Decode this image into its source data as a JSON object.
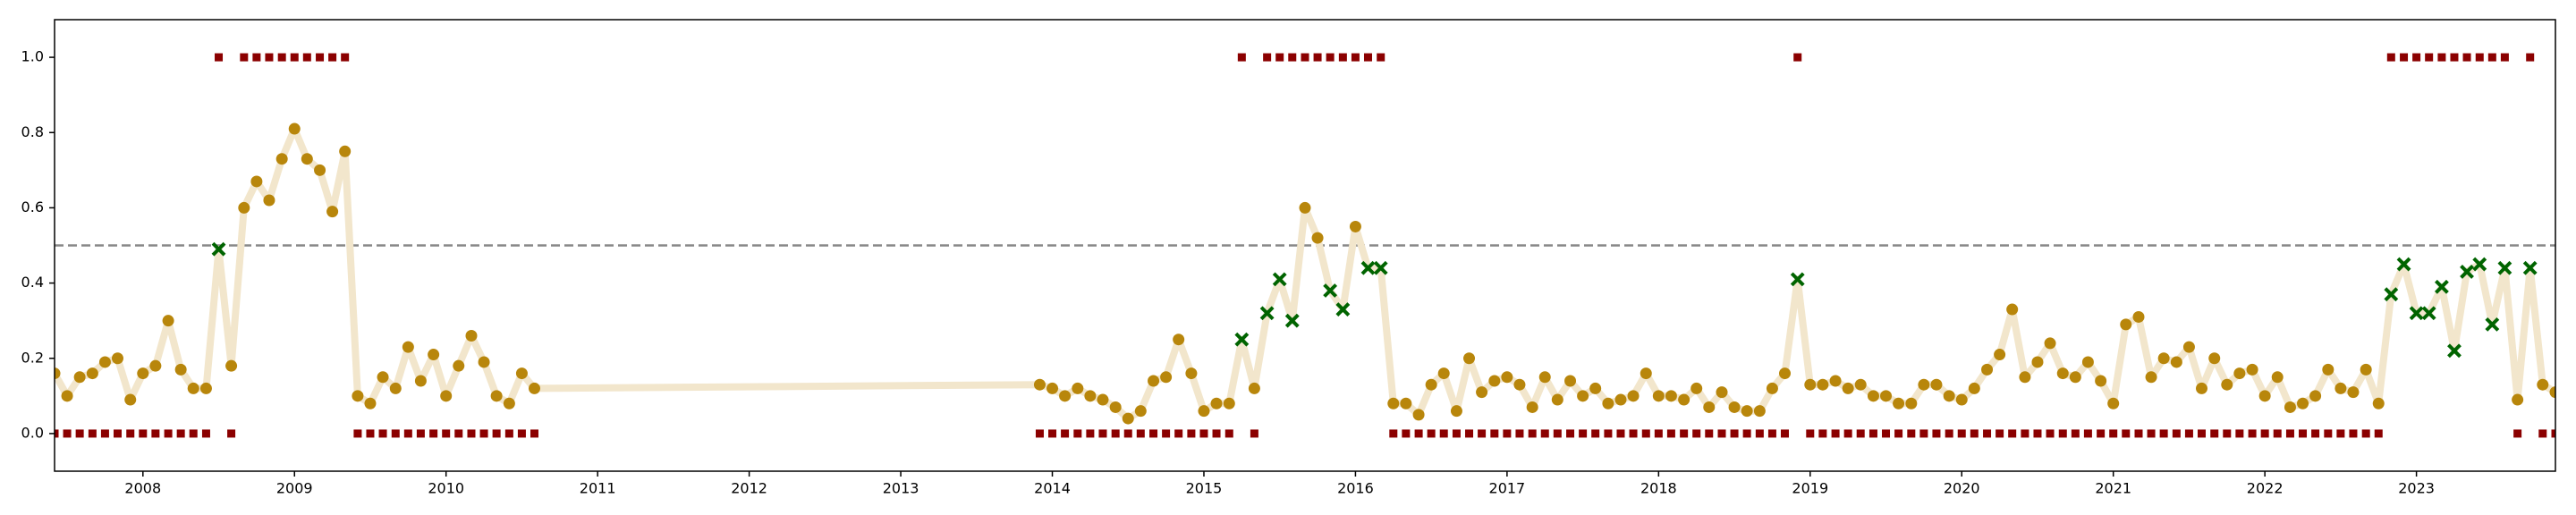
{
  "chart_data": {
    "type": "line",
    "x": [
      2007.417,
      2007.5,
      2007.583,
      2007.667,
      2007.75,
      2007.833,
      2007.917,
      2008,
      2008.083,
      2008.167,
      2008.25,
      2008.333,
      2008.417,
      2008.5,
      2008.583,
      2008.667,
      2008.75,
      2008.833,
      2008.917,
      2009,
      2009.083,
      2009.167,
      2009.25,
      2009.333,
      2009.417,
      2009.5,
      2009.583,
      2009.667,
      2009.75,
      2009.833,
      2009.917,
      2010,
      2010.083,
      2010.167,
      2010.25,
      2010.333,
      2010.417,
      2010.5,
      2010.583,
      2013.917,
      2014,
      2014.083,
      2014.167,
      2014.25,
      2014.333,
      2014.417,
      2014.5,
      2014.583,
      2014.667,
      2014.75,
      2014.833,
      2014.917,
      2015,
      2015.083,
      2015.167,
      2015.25,
      2015.333,
      2015.417,
      2015.5,
      2015.583,
      2015.667,
      2015.75,
      2015.833,
      2015.917,
      2016,
      2016.083,
      2016.167,
      2016.25,
      2016.333,
      2016.417,
      2016.5,
      2016.583,
      2016.667,
      2016.75,
      2016.833,
      2016.917,
      2017,
      2017.083,
      2017.167,
      2017.25,
      2017.333,
      2017.417,
      2017.5,
      2017.583,
      2017.667,
      2017.75,
      2017.833,
      2017.917,
      2018,
      2018.083,
      2018.167,
      2018.25,
      2018.333,
      2018.417,
      2018.5,
      2018.583,
      2018.667,
      2018.75,
      2018.833,
      2018.917,
      2019,
      2019.083,
      2019.167,
      2019.25,
      2019.333,
      2019.417,
      2019.5,
      2019.583,
      2019.667,
      2019.75,
      2019.833,
      2019.917,
      2020,
      2020.083,
      2020.167,
      2020.25,
      2020.333,
      2020.417,
      2020.5,
      2020.583,
      2020.667,
      2020.75,
      2020.833,
      2020.917,
      2021,
      2021.083,
      2021.167,
      2021.25,
      2021.333,
      2021.417,
      2021.5,
      2021.583,
      2021.667,
      2021.75,
      2021.833,
      2021.917,
      2022,
      2022.083,
      2022.167,
      2022.25,
      2022.333,
      2022.417,
      2022.5,
      2022.583,
      2022.667,
      2022.75,
      2022.833,
      2022.917,
      2023,
      2023.083,
      2023.167,
      2023.25,
      2023.333,
      2023.417,
      2023.5,
      2023.583,
      2023.667,
      2023.75,
      2023.833,
      2023.917
    ],
    "series": [
      {
        "color": "#f2e6cc",
        "marker_color": "#b8860b",
        "miss_color": "#006400",
        "values": [
          0.16,
          0.1,
          0.15,
          0.16,
          0.19,
          0.2,
          0.09,
          0.16,
          0.18,
          0.3,
          0.17,
          0.12,
          0.12,
          0.49,
          0.18,
          0.6,
          0.67,
          0.62,
          0.73,
          0.81,
          0.73,
          0.7,
          0.59,
          0.75,
          0.1,
          0.08,
          0.15,
          0.12,
          0.23,
          0.14,
          0.21,
          0.1,
          0.18,
          0.26,
          0.19,
          0.1,
          0.08,
          0.16,
          0.12,
          0.13,
          0.12,
          0.1,
          0.12,
          0.1,
          0.09,
          0.07,
          0.04,
          0.06,
          0.14,
          0.15,
          0.25,
          0.16,
          0.06,
          0.08,
          0.08,
          0.25,
          0.12,
          0.32,
          0.41,
          0.3,
          0.6,
          0.52,
          0.38,
          0.33,
          0.55,
          0.44,
          0.44,
          0.08,
          0.08,
          0.05,
          0.13,
          0.16,
          0.06,
          0.2,
          0.11,
          0.14,
          0.15,
          0.13,
          0.07,
          0.15,
          0.09,
          0.14,
          0.1,
          0.12,
          0.08,
          0.09,
          0.1,
          0.16,
          0.1,
          0.1,
          0.09,
          0.12,
          0.07,
          0.11,
          0.07,
          0.06,
          0.06,
          0.12,
          0.16,
          0.41,
          0.13,
          0.13,
          0.14,
          0.12,
          0.13,
          0.1,
          0.1,
          0.08,
          0.08,
          0.13,
          0.13,
          0.1,
          0.09,
          0.12,
          0.17,
          0.21,
          0.33,
          0.15,
          0.19,
          0.24,
          0.16,
          0.15,
          0.19,
          0.14,
          0.08,
          0.29,
          0.31,
          0.15,
          0.2,
          0.19,
          0.23,
          0.12,
          0.2,
          0.13,
          0.16,
          0.17,
          0.1,
          0.15,
          0.07,
          0.08,
          0.1,
          0.17,
          0.12,
          0.11,
          0.17,
          0.08,
          0.37,
          0.45,
          0.32,
          0.32,
          0.39,
          0.22,
          0.43,
          0.45,
          0.29,
          0.44,
          0.09,
          0.44,
          0.13,
          0.11
        ]
      },
      {
        "color": "#8b0000",
        "marker": "square",
        "values": [
          0,
          0,
          0,
          0,
          0,
          0,
          0,
          0,
          0,
          0,
          0,
          0,
          0,
          1,
          0,
          1,
          1,
          1,
          1,
          1,
          1,
          1,
          1,
          1,
          0,
          0,
          0,
          0,
          0,
          0,
          0,
          0,
          0,
          0,
          0,
          0,
          0,
          0,
          0,
          0,
          0,
          0,
          0,
          0,
          0,
          0,
          0,
          0,
          0,
          0,
          0,
          0,
          0,
          0,
          0,
          1,
          0,
          1,
          1,
          1,
          1,
          1,
          1,
          1,
          1,
          1,
          1,
          0,
          0,
          0,
          0,
          0,
          0,
          0,
          0,
          0,
          0,
          0,
          0,
          0,
          0,
          0,
          0,
          0,
          0,
          0,
          0,
          0,
          0,
          0,
          0,
          0,
          0,
          0,
          0,
          0,
          0,
          0,
          0,
          1,
          0,
          0,
          0,
          0,
          0,
          0,
          0,
          0,
          0,
          0,
          0,
          0,
          0,
          0,
          0,
          0,
          0,
          0,
          0,
          0,
          0,
          0,
          0,
          0,
          0,
          0,
          0,
          0,
          0,
          0,
          0,
          0,
          0,
          0,
          0,
          0,
          0,
          0,
          0,
          0,
          0,
          0,
          0,
          0,
          0,
          0,
          1,
          1,
          1,
          1,
          1,
          1,
          1,
          1,
          1,
          1,
          0,
          1,
          0,
          0
        ]
      }
    ],
    "threshold": 0.5,
    "threshold_color": "#888888",
    "xlim": [
      2007.417,
      2023.917
    ],
    "xticks": [
      2008,
      2009,
      2010,
      2011,
      2012,
      2013,
      2014,
      2015,
      2016,
      2017,
      2018,
      2019,
      2020,
      2021,
      2022,
      2023
    ],
    "ylim": [
      -0.1,
      1.1
    ],
    "yticks": [
      {
        "value": 0,
        "label": "0.0"
      },
      {
        "value": 0.2,
        "label": "0.2"
      },
      {
        "value": 0.4,
        "label": "0.4"
      },
      {
        "value": 0.6,
        "label": "0.6"
      },
      {
        "value": 0.8,
        "label": "0.8"
      },
      {
        "value": 1,
        "label": "1.0"
      }
    ]
  }
}
